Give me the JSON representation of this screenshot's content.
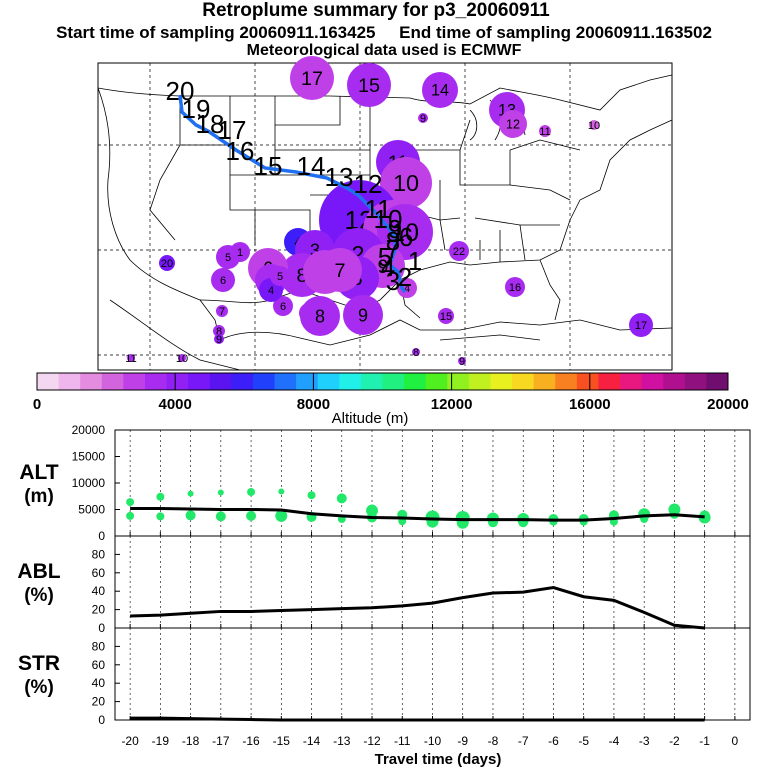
{
  "title": {
    "line1": "Retroplume summary for p3_20060911",
    "line2_start": "Start time of sampling 20060911.163425",
    "line2_end": "End time of sampling 20060911.163502",
    "line3": "Meteorological data used is ECMWF"
  },
  "colorbar": {
    "label": "Altitude (m)",
    "ticks": [
      "0",
      "4000",
      "8000",
      "12000",
      "16000",
      "20000"
    ],
    "range": [
      0,
      20000
    ]
  },
  "chart_data": [
    {
      "type": "scatter",
      "name": "ALT",
      "ylabel_line1": "ALT",
      "ylabel_line2": "(m)",
      "ylim": [
        0,
        20000
      ],
      "yticks": [
        "20000",
        "15000",
        "10000",
        "5000",
        "0"
      ],
      "x": [
        -20,
        -19,
        -18,
        -17,
        -16,
        -15,
        -14,
        -13,
        -12,
        -11,
        -10,
        -9,
        -8,
        -7,
        -6,
        -5,
        -4,
        -3,
        -2,
        -1
      ],
      "mean_line": [
        5200,
        5200,
        5100,
        5000,
        5000,
        4900,
        4200,
        3800,
        3500,
        3400,
        3200,
        3100,
        3100,
        3100,
        3000,
        3000,
        3300,
        3800,
        4000,
        3600
      ],
      "points": [
        [
          -20,
          6400,
          4
        ],
        [
          -20,
          3800,
          4
        ],
        [
          -19,
          7400,
          4
        ],
        [
          -19,
          3700,
          4
        ],
        [
          -18,
          8000,
          3
        ],
        [
          -18,
          3900,
          5
        ],
        [
          -17,
          8200,
          3
        ],
        [
          -17,
          3700,
          5
        ],
        [
          -16,
          8300,
          4
        ],
        [
          -16,
          3800,
          5
        ],
        [
          -15,
          8400,
          3
        ],
        [
          -15,
          3800,
          6
        ],
        [
          -14,
          7700,
          4
        ],
        [
          -14,
          3600,
          5
        ],
        [
          -13,
          7100,
          5
        ],
        [
          -13,
          3200,
          4
        ],
        [
          -12,
          4800,
          6
        ],
        [
          -12,
          3500,
          5
        ],
        [
          -11,
          4000,
          5
        ],
        [
          -11,
          2800,
          4
        ],
        [
          -10,
          3500,
          7
        ],
        [
          -10,
          2700,
          6
        ],
        [
          -9,
          3400,
          7
        ],
        [
          -9,
          2500,
          6
        ],
        [
          -8,
          3300,
          6
        ],
        [
          -8,
          2600,
          5
        ],
        [
          -7,
          3200,
          6
        ],
        [
          -7,
          2600,
          5
        ],
        [
          -6,
          3200,
          5
        ],
        [
          -6,
          2700,
          4
        ],
        [
          -5,
          3200,
          5
        ],
        [
          -5,
          2700,
          4
        ],
        [
          -4,
          3900,
          5
        ],
        [
          -4,
          2700,
          4
        ],
        [
          -3,
          4100,
          6
        ],
        [
          -3,
          3200,
          4
        ],
        [
          -2,
          5000,
          6
        ],
        [
          -2,
          4200,
          5
        ],
        [
          -1,
          3500,
          6
        ],
        [
          -1,
          3900,
          5
        ]
      ]
    },
    {
      "type": "line",
      "name": "ABL",
      "ylabel_line1": "ABL",
      "ylabel_line2": "(%)",
      "ylim": [
        0,
        100
      ],
      "yticks": [
        "80",
        "60",
        "40",
        "20",
        "0"
      ],
      "x": [
        -20,
        -19,
        -18,
        -17,
        -16,
        -15,
        -14,
        -13,
        -12,
        -11,
        -10,
        -9,
        -8,
        -7,
        -6,
        -5,
        -4,
        -3,
        -2,
        -1
      ],
      "values": [
        13,
        14,
        16,
        18,
        18,
        19,
        20,
        21,
        22,
        24,
        27,
        33,
        38,
        39,
        44,
        34,
        30,
        17,
        3,
        0
      ]
    },
    {
      "type": "line",
      "name": "STR",
      "ylabel_line1": "STR",
      "ylabel_line2": "(%)",
      "ylim": [
        0,
        100
      ],
      "yticks": [
        "80",
        "60",
        "40",
        "20",
        "0"
      ],
      "x": [
        -20,
        -19,
        -18,
        -17,
        -16,
        -15,
        -14,
        -13,
        -12,
        -11,
        -10,
        -9,
        -8,
        -7,
        -6,
        -5,
        -4,
        -3,
        -2,
        -1
      ],
      "values": [
        2,
        2,
        1.5,
        1,
        0.5,
        0,
        0,
        0,
        0,
        0,
        0,
        0,
        0,
        0,
        0,
        0,
        0,
        0,
        0,
        0
      ]
    }
  ],
  "xaxis": {
    "label": "Travel time (days)",
    "ticks": [
      "-20",
      "-19",
      "-18",
      "-17",
      "-16",
      "-15",
      "-14",
      "-13",
      "-12",
      "-11",
      "-10",
      "-9",
      "-8",
      "-7",
      "-6",
      "-5",
      "-4",
      "-3",
      "-2",
      "-1",
      "0"
    ]
  },
  "map": {
    "track_labels": [
      "20",
      "19",
      "18",
      "17",
      "16",
      "15",
      "14",
      "13",
      "12",
      "11",
      "10",
      "9",
      "8",
      "7",
      "6",
      "5",
      "4",
      "3",
      "2",
      "1"
    ],
    "bubbles": [
      {
        "label": "17",
        "alt": 3000,
        "size": 22
      },
      {
        "label": "15",
        "alt": 3500,
        "size": 22
      },
      {
        "label": "14",
        "alt": 3200,
        "size": 18
      },
      {
        "label": "9",
        "alt": 3500,
        "size": 5
      },
      {
        "label": "13",
        "alt": 3300,
        "size": 18
      },
      {
        "label": "12",
        "alt": 3000,
        "size": 14
      },
      {
        "label": "11",
        "alt": 2800,
        "size": 6
      },
      {
        "label": "10",
        "alt": 2000,
        "size": 5
      },
      {
        "label": "11",
        "alt": 3800,
        "size": 22
      },
      {
        "label": "10",
        "alt": 2800,
        "size": 26
      },
      {
        "label": "12",
        "alt": 4800,
        "size": 40
      },
      {
        "label": "11",
        "alt": 3000,
        "size": 30
      },
      {
        "label": "10",
        "alt": 3200,
        "size": 28
      },
      {
        "label": "4",
        "alt": 5800,
        "size": 14
      },
      {
        "label": "3",
        "alt": 3800,
        "size": 20
      },
      {
        "label": "2",
        "alt": 3800,
        "size": 26
      },
      {
        "label": "20",
        "alt": 4800,
        "size": 8
      },
      {
        "label": "5",
        "alt": 3300,
        "size": 12
      },
      {
        "label": "1",
        "alt": 3600,
        "size": 10
      },
      {
        "label": "8",
        "alt": 3200,
        "size": 22
      },
      {
        "label": "7",
        "alt": 3000,
        "size": 22
      },
      {
        "label": "6",
        "alt": 3000,
        "size": 20
      },
      {
        "label": "5",
        "alt": 3400,
        "size": 16
      },
      {
        "label": "9",
        "alt": 3000,
        "size": 22
      },
      {
        "label": "8",
        "alt": 3800,
        "size": 22
      },
      {
        "label": "7",
        "alt": 2600,
        "size": 22
      },
      {
        "label": "6",
        "alt": 3500,
        "size": 12
      },
      {
        "label": "5",
        "alt": 3700,
        "size": 12
      },
      {
        "label": "4",
        "alt": 2500,
        "size": 10
      },
      {
        "label": "6",
        "alt": 3600,
        "size": 10
      },
      {
        "label": "4",
        "alt": 4600,
        "size": 12
      },
      {
        "label": "5",
        "alt": 3400,
        "size": 10
      },
      {
        "label": "6",
        "alt": 3400,
        "size": 10
      },
      {
        "label": "8",
        "alt": 3400,
        "size": 20
      },
      {
        "label": "9",
        "alt": 3700,
        "size": 20
      },
      {
        "label": "7",
        "alt": 3700,
        "size": 6
      },
      {
        "label": "8",
        "alt": 3700,
        "size": 6
      },
      {
        "label": "9",
        "alt": 3900,
        "size": 5
      },
      {
        "label": "15",
        "alt": 3600,
        "size": 8
      },
      {
        "label": "16",
        "alt": 3600,
        "size": 10
      },
      {
        "label": "22",
        "alt": 3600,
        "size": 10
      },
      {
        "label": "17",
        "alt": 3800,
        "size": 12
      },
      {
        "label": "11",
        "alt": 3400,
        "size": 4
      },
      {
        "label": "10",
        "alt": 3400,
        "size": 4
      },
      {
        "label": "8",
        "alt": 3400,
        "size": 4
      },
      {
        "label": "9",
        "alt": 3400,
        "size": 4
      }
    ]
  }
}
